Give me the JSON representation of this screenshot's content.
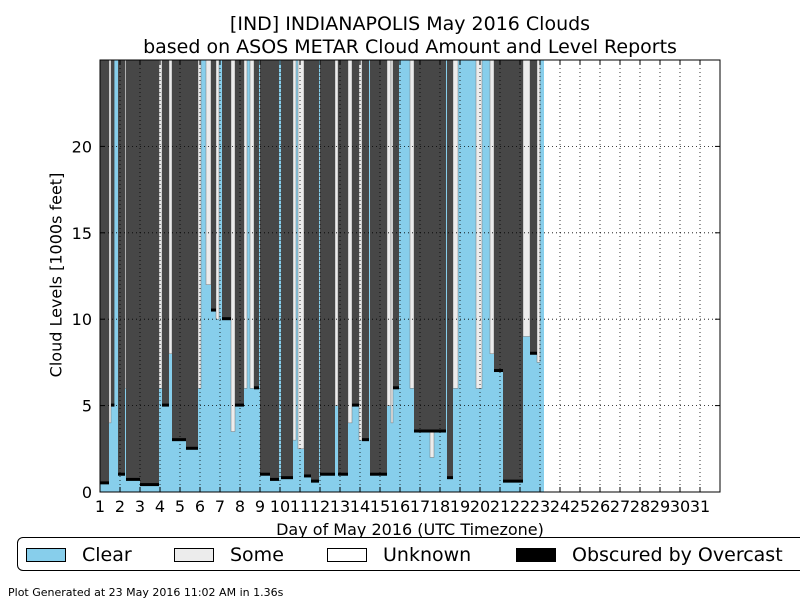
{
  "chart_data": {
    "type": "area",
    "title": "[IND] INDIANAPOLIS May 2016 Clouds",
    "subtitle": "based on ASOS METAR Cloud Amount and Level Reports",
    "xlabel": "Day of May 2016 (UTC Timezone)",
    "ylabel": "Cloud Levels [1000s feet]",
    "xlim": [
      1,
      32
    ],
    "ylim": [
      0,
      25
    ],
    "x_ticks": [
      "1",
      "2",
      "3",
      "4",
      "5",
      "6",
      "7",
      "8",
      "9",
      "10",
      "11",
      "12",
      "13",
      "14",
      "15",
      "16",
      "17",
      "18",
      "19",
      "20",
      "21",
      "22",
      "23",
      "24",
      "25",
      "26",
      "27",
      "28",
      "29",
      "30",
      "31"
    ],
    "y_ticks": [
      0,
      5,
      10,
      15,
      20
    ],
    "grid": true,
    "data_end_day": 23.2,
    "overcast_segments": [
      {
        "start": 1.0,
        "end": 1.45,
        "base": 0.5
      },
      {
        "start": 1.55,
        "end": 1.72,
        "base": 5.0
      },
      {
        "start": 1.9,
        "end": 2.25,
        "base": 1.0
      },
      {
        "start": 2.3,
        "end": 3.0,
        "base": 0.7
      },
      {
        "start": 3.0,
        "end": 3.95,
        "base": 0.4
      },
      {
        "start": 4.1,
        "end": 4.45,
        "base": 5.0
      },
      {
        "start": 4.6,
        "end": 5.3,
        "base": 3.0
      },
      {
        "start": 5.3,
        "end": 5.9,
        "base": 2.5
      },
      {
        "start": 6.55,
        "end": 6.8,
        "base": 10.5
      },
      {
        "start": 7.1,
        "end": 7.55,
        "base": 10.0
      },
      {
        "start": 7.75,
        "end": 8.2,
        "base": 5.0
      },
      {
        "start": 8.7,
        "end": 8.95,
        "base": 6.0
      },
      {
        "start": 9.0,
        "end": 9.5,
        "base": 1.0
      },
      {
        "start": 9.5,
        "end": 9.95,
        "base": 0.7
      },
      {
        "start": 10.05,
        "end": 10.65,
        "base": 0.8
      },
      {
        "start": 11.2,
        "end": 11.55,
        "base": 0.9
      },
      {
        "start": 11.55,
        "end": 11.95,
        "base": 0.6
      },
      {
        "start": 12.0,
        "end": 12.75,
        "base": 1.0
      },
      {
        "start": 12.9,
        "end": 13.4,
        "base": 1.0
      },
      {
        "start": 13.6,
        "end": 13.95,
        "base": 5.0
      },
      {
        "start": 14.1,
        "end": 14.45,
        "base": 3.0
      },
      {
        "start": 14.5,
        "end": 15.35,
        "base": 1.0
      },
      {
        "start": 15.65,
        "end": 15.95,
        "base": 6.0
      },
      {
        "start": 16.7,
        "end": 17.3,
        "base": 3.5
      },
      {
        "start": 17.3,
        "end": 18.3,
        "base": 3.5
      },
      {
        "start": 18.35,
        "end": 18.65,
        "base": 0.8
      },
      {
        "start": 20.7,
        "end": 21.15,
        "base": 7.0
      },
      {
        "start": 21.15,
        "end": 22.15,
        "base": 0.6
      },
      {
        "start": 22.5,
        "end": 22.85,
        "base": 8.0
      }
    ],
    "some_segments": [
      {
        "start": 1.45,
        "end": 1.55,
        "base": 4.0
      },
      {
        "start": 2.25,
        "end": 2.3,
        "base": 6.0
      },
      {
        "start": 3.95,
        "end": 4.1,
        "base": 6.0
      },
      {
        "start": 4.45,
        "end": 4.6,
        "base": 8.0
      },
      {
        "start": 5.9,
        "end": 6.05,
        "base": 6.0
      },
      {
        "start": 6.3,
        "end": 6.55,
        "base": 12.0
      },
      {
        "start": 6.8,
        "end": 6.95,
        "base": 10.0
      },
      {
        "start": 7.55,
        "end": 7.75,
        "base": 3.5
      },
      {
        "start": 8.2,
        "end": 8.35,
        "base": 6.0
      },
      {
        "start": 8.5,
        "end": 8.7,
        "base": 6.0
      },
      {
        "start": 10.65,
        "end": 10.8,
        "base": 3.0
      },
      {
        "start": 10.9,
        "end": 11.2,
        "base": 2.5
      },
      {
        "start": 12.75,
        "end": 12.9,
        "base": 5.0
      },
      {
        "start": 13.4,
        "end": 13.6,
        "base": 4.0
      },
      {
        "start": 13.95,
        "end": 14.1,
        "base": 3.0
      },
      {
        "start": 15.35,
        "end": 15.55,
        "base": 5.0
      },
      {
        "start": 15.55,
        "end": 15.65,
        "base": 4.0
      },
      {
        "start": 16.5,
        "end": 16.7,
        "base": 6.0
      },
      {
        "start": 17.5,
        "end": 17.7,
        "base": 2.0
      },
      {
        "start": 18.65,
        "end": 18.9,
        "base": 6.0
      },
      {
        "start": 19.8,
        "end": 20.1,
        "base": 6.0
      },
      {
        "start": 20.5,
        "end": 20.7,
        "base": 8.0
      },
      {
        "start": 22.15,
        "end": 22.5,
        "base": 9.0
      },
      {
        "start": 22.85,
        "end": 23.0,
        "base": 7.5
      }
    ]
  },
  "legend": {
    "items": [
      {
        "label": "Clear",
        "color": "#87ceeb"
      },
      {
        "label": "Some",
        "color": "#ececec"
      },
      {
        "label": "Unknown",
        "color": "#ffffff"
      },
      {
        "label": "Obscured by Overcast",
        "color": "#000000"
      }
    ]
  },
  "colors": {
    "clear": "#87ceeb",
    "some": "#ececec",
    "overcast": "#474747",
    "obscured": "#000000"
  },
  "footer": "Plot Generated at 23 May 2016 11:02 AM in 1.36s"
}
